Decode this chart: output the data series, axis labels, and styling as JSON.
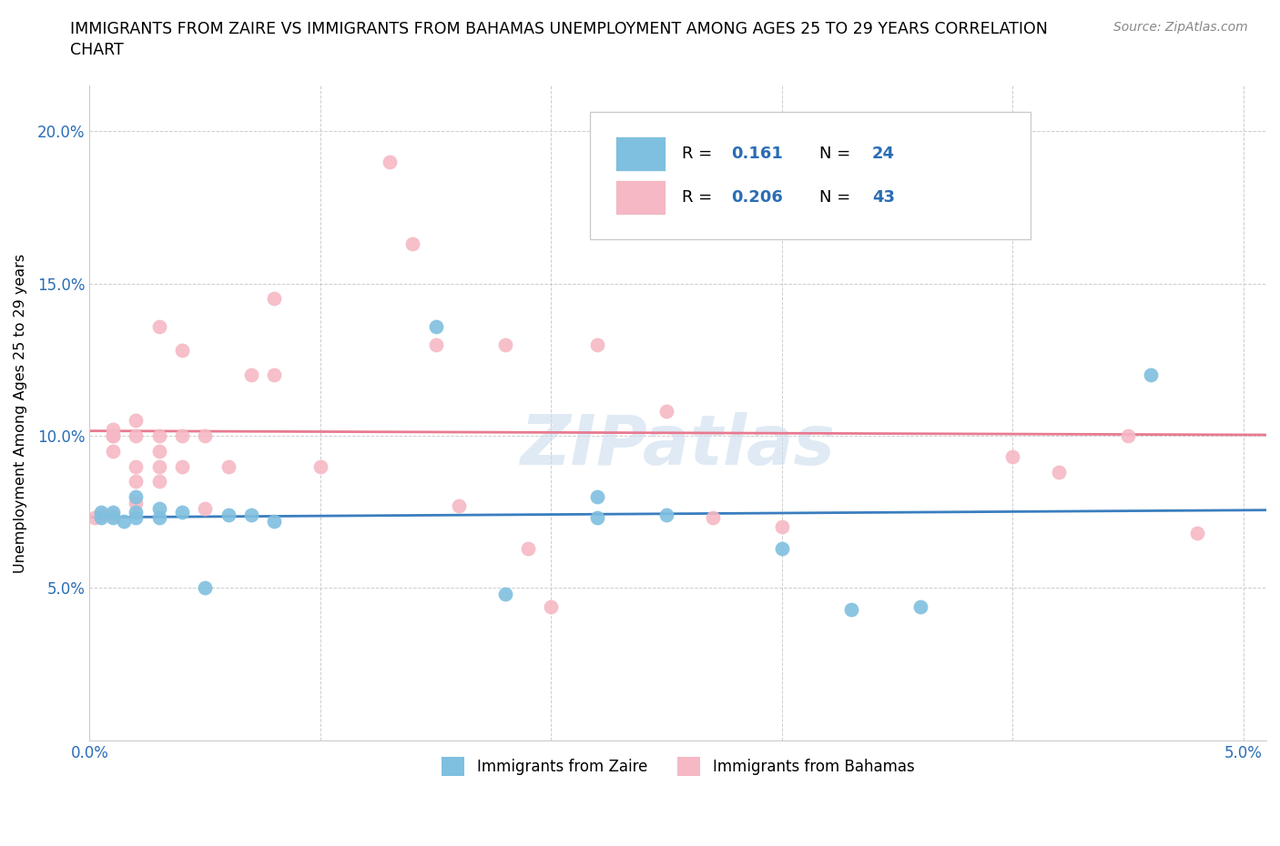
{
  "title_line1": "IMMIGRANTS FROM ZAIRE VS IMMIGRANTS FROM BAHAMAS UNEMPLOYMENT AMONG AGES 25 TO 29 YEARS CORRELATION",
  "title_line2": "CHART",
  "source": "Source: ZipAtlas.com",
  "ylabel": "Unemployment Among Ages 25 to 29 years",
  "xlim": [
    0.0,
    0.051
  ],
  "ylim": [
    0.0,
    0.215
  ],
  "xticks": [
    0.0,
    0.01,
    0.02,
    0.03,
    0.04,
    0.05
  ],
  "yticks": [
    0.0,
    0.05,
    0.1,
    0.15,
    0.2
  ],
  "xtick_labels": [
    "0.0%",
    "",
    "",
    "",
    "",
    "5.0%"
  ],
  "ytick_labels": [
    "",
    "5.0%",
    "10.0%",
    "15.0%",
    "20.0%"
  ],
  "zaire_color": "#7fbfdf",
  "bahamas_color": "#f5b8c4",
  "zaire_line_color": "#3a7ebf",
  "bahamas_line_color": "#e87a90",
  "legend_R_zaire": "0.161",
  "legend_N_zaire": "24",
  "legend_R_bahamas": "0.206",
  "legend_N_bahamas": "43",
  "watermark": "ZIPatlas",
  "zaire_x": [
    0.0005,
    0.0005,
    0.001,
    0.001,
    0.0015,
    0.002,
    0.002,
    0.002,
    0.003,
    0.003,
    0.004,
    0.005,
    0.006,
    0.007,
    0.008,
    0.015,
    0.018,
    0.022,
    0.022,
    0.025,
    0.03,
    0.033,
    0.036,
    0.046
  ],
  "zaire_y": [
    0.075,
    0.073,
    0.075,
    0.073,
    0.072,
    0.075,
    0.073,
    0.08,
    0.073,
    0.076,
    0.075,
    0.05,
    0.074,
    0.074,
    0.072,
    0.136,
    0.048,
    0.073,
    0.08,
    0.074,
    0.063,
    0.043,
    0.044,
    0.12
  ],
  "bahamas_x": [
    0.0002,
    0.0005,
    0.001,
    0.001,
    0.001,
    0.001,
    0.001,
    0.002,
    0.002,
    0.002,
    0.002,
    0.002,
    0.003,
    0.003,
    0.003,
    0.003,
    0.003,
    0.004,
    0.004,
    0.004,
    0.005,
    0.005,
    0.006,
    0.007,
    0.008,
    0.008,
    0.01,
    0.013,
    0.014,
    0.015,
    0.016,
    0.018,
    0.019,
    0.02,
    0.022,
    0.025,
    0.027,
    0.027,
    0.03,
    0.04,
    0.042,
    0.045,
    0.048
  ],
  "bahamas_y": [
    0.073,
    0.074,
    0.1,
    0.095,
    0.1,
    0.102,
    0.074,
    0.078,
    0.085,
    0.1,
    0.09,
    0.105,
    0.09,
    0.095,
    0.1,
    0.136,
    0.085,
    0.1,
    0.128,
    0.09,
    0.1,
    0.076,
    0.09,
    0.12,
    0.145,
    0.12,
    0.09,
    0.19,
    0.163,
    0.13,
    0.077,
    0.13,
    0.063,
    0.044,
    0.13,
    0.108,
    0.073,
    0.188,
    0.07,
    0.093,
    0.088,
    0.1,
    0.068
  ]
}
